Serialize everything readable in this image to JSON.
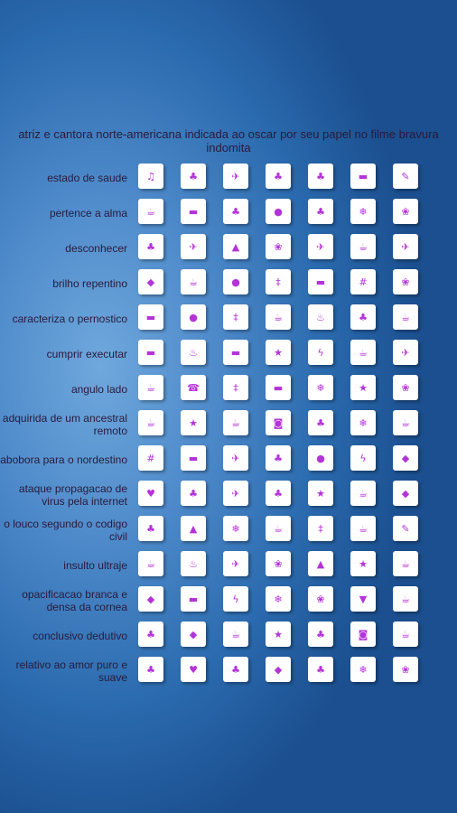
{
  "title": "atriz e cantora norte-americana indicada ao oscar por seu papel no filme bravura indomita",
  "colors": {
    "icon": "#b433d9",
    "text": "#2a1a3a",
    "tile": "#ffffff"
  },
  "rows": [
    {
      "clue": "estado de saude",
      "icons": [
        "music-note-icon",
        "tree-icon",
        "airplane-icon",
        "tree-icon",
        "tree-icon",
        "couch-icon",
        "pencil-icon"
      ]
    },
    {
      "clue": "pertence a alma",
      "icons": [
        "coffee-cup-icon",
        "couch-icon",
        "tree-icon",
        "apple-icon",
        "tree-icon",
        "snowflake-icon",
        "paw-icon"
      ]
    },
    {
      "clue": "desconhecer",
      "icons": [
        "tree-icon",
        "airplane-icon",
        "car-icon",
        "paw-icon",
        "airplane-icon",
        "coffee-cup-icon",
        "airplane-icon"
      ]
    },
    {
      "clue": "brilho repentino",
      "icons": [
        "drop-icon",
        "coffee-cup-icon",
        "apple-icon",
        "footprints-icon",
        "couch-icon",
        "hash-icon",
        "paw-icon"
      ]
    },
    {
      "clue": "caracteriza o pernostico",
      "icons": [
        "couch-icon",
        "apple-icon",
        "footprints-icon",
        "coffee-cup-icon",
        "fire-icon",
        "tree-icon",
        "coffee-cup-icon"
      ]
    },
    {
      "clue": "cumprir executar",
      "icons": [
        "couch-icon",
        "fire-icon",
        "couch-icon",
        "star-icon",
        "lightning-icon",
        "coffee-cup-icon",
        "airplane-icon"
      ]
    },
    {
      "clue": "angulo lado",
      "icons": [
        "coffee-cup-icon",
        "phone-icon",
        "footprints-icon",
        "couch-icon",
        "snowflake-icon",
        "star-icon",
        "paw-icon"
      ]
    },
    {
      "clue": "adquirida de um ancestral remoto",
      "icons": [
        "coffee-cup-icon",
        "star-icon",
        "coffee-cup-icon",
        "money-bag-icon",
        "tree-icon",
        "snowflake-icon",
        "coffee-cup-icon"
      ]
    },
    {
      "clue": "abobora para o nordestino",
      "icons": [
        "hash-icon",
        "couch-icon",
        "airplane-icon",
        "tree-icon",
        "apple-icon",
        "lightning-icon",
        "drop-icon"
      ]
    },
    {
      "clue": "ataque propagacao de virus pela internet",
      "icons": [
        "heart-icon",
        "tree-icon",
        "airplane-icon",
        "tree-icon",
        "star-icon",
        "coffee-cup-icon",
        "drop-icon"
      ]
    },
    {
      "clue": "o louco segundo o codigo civil",
      "icons": [
        "tree-icon",
        "car-icon",
        "snowflake-icon",
        "coffee-cup-icon",
        "footprints-icon",
        "coffee-cup-icon",
        "pencil-icon"
      ]
    },
    {
      "clue": "insulto ultraje",
      "icons": [
        "coffee-cup-icon",
        "fire-icon",
        "airplane-icon",
        "paw-icon",
        "car-icon",
        "star-icon",
        "coffee-cup-icon"
      ]
    },
    {
      "clue": "opacificacao branca e densa da cornea",
      "icons": [
        "drop-icon",
        "couch-icon",
        "lightning-icon",
        "snowflake-icon",
        "paw-icon",
        "shopping-basket-icon",
        "coffee-cup-icon"
      ]
    },
    {
      "clue": "conclusivo dedutivo",
      "icons": [
        "tree-icon",
        "drop-icon",
        "coffee-cup-icon",
        "star-icon",
        "tree-icon",
        "money-bag-icon",
        "coffee-cup-icon"
      ]
    },
    {
      "clue": "relativo ao amor puro e suave",
      "icons": [
        "tree-icon",
        "heart-icon",
        "tree-icon",
        "drop-icon",
        "tree-icon",
        "snowflake-icon",
        "paw-icon"
      ]
    }
  ]
}
